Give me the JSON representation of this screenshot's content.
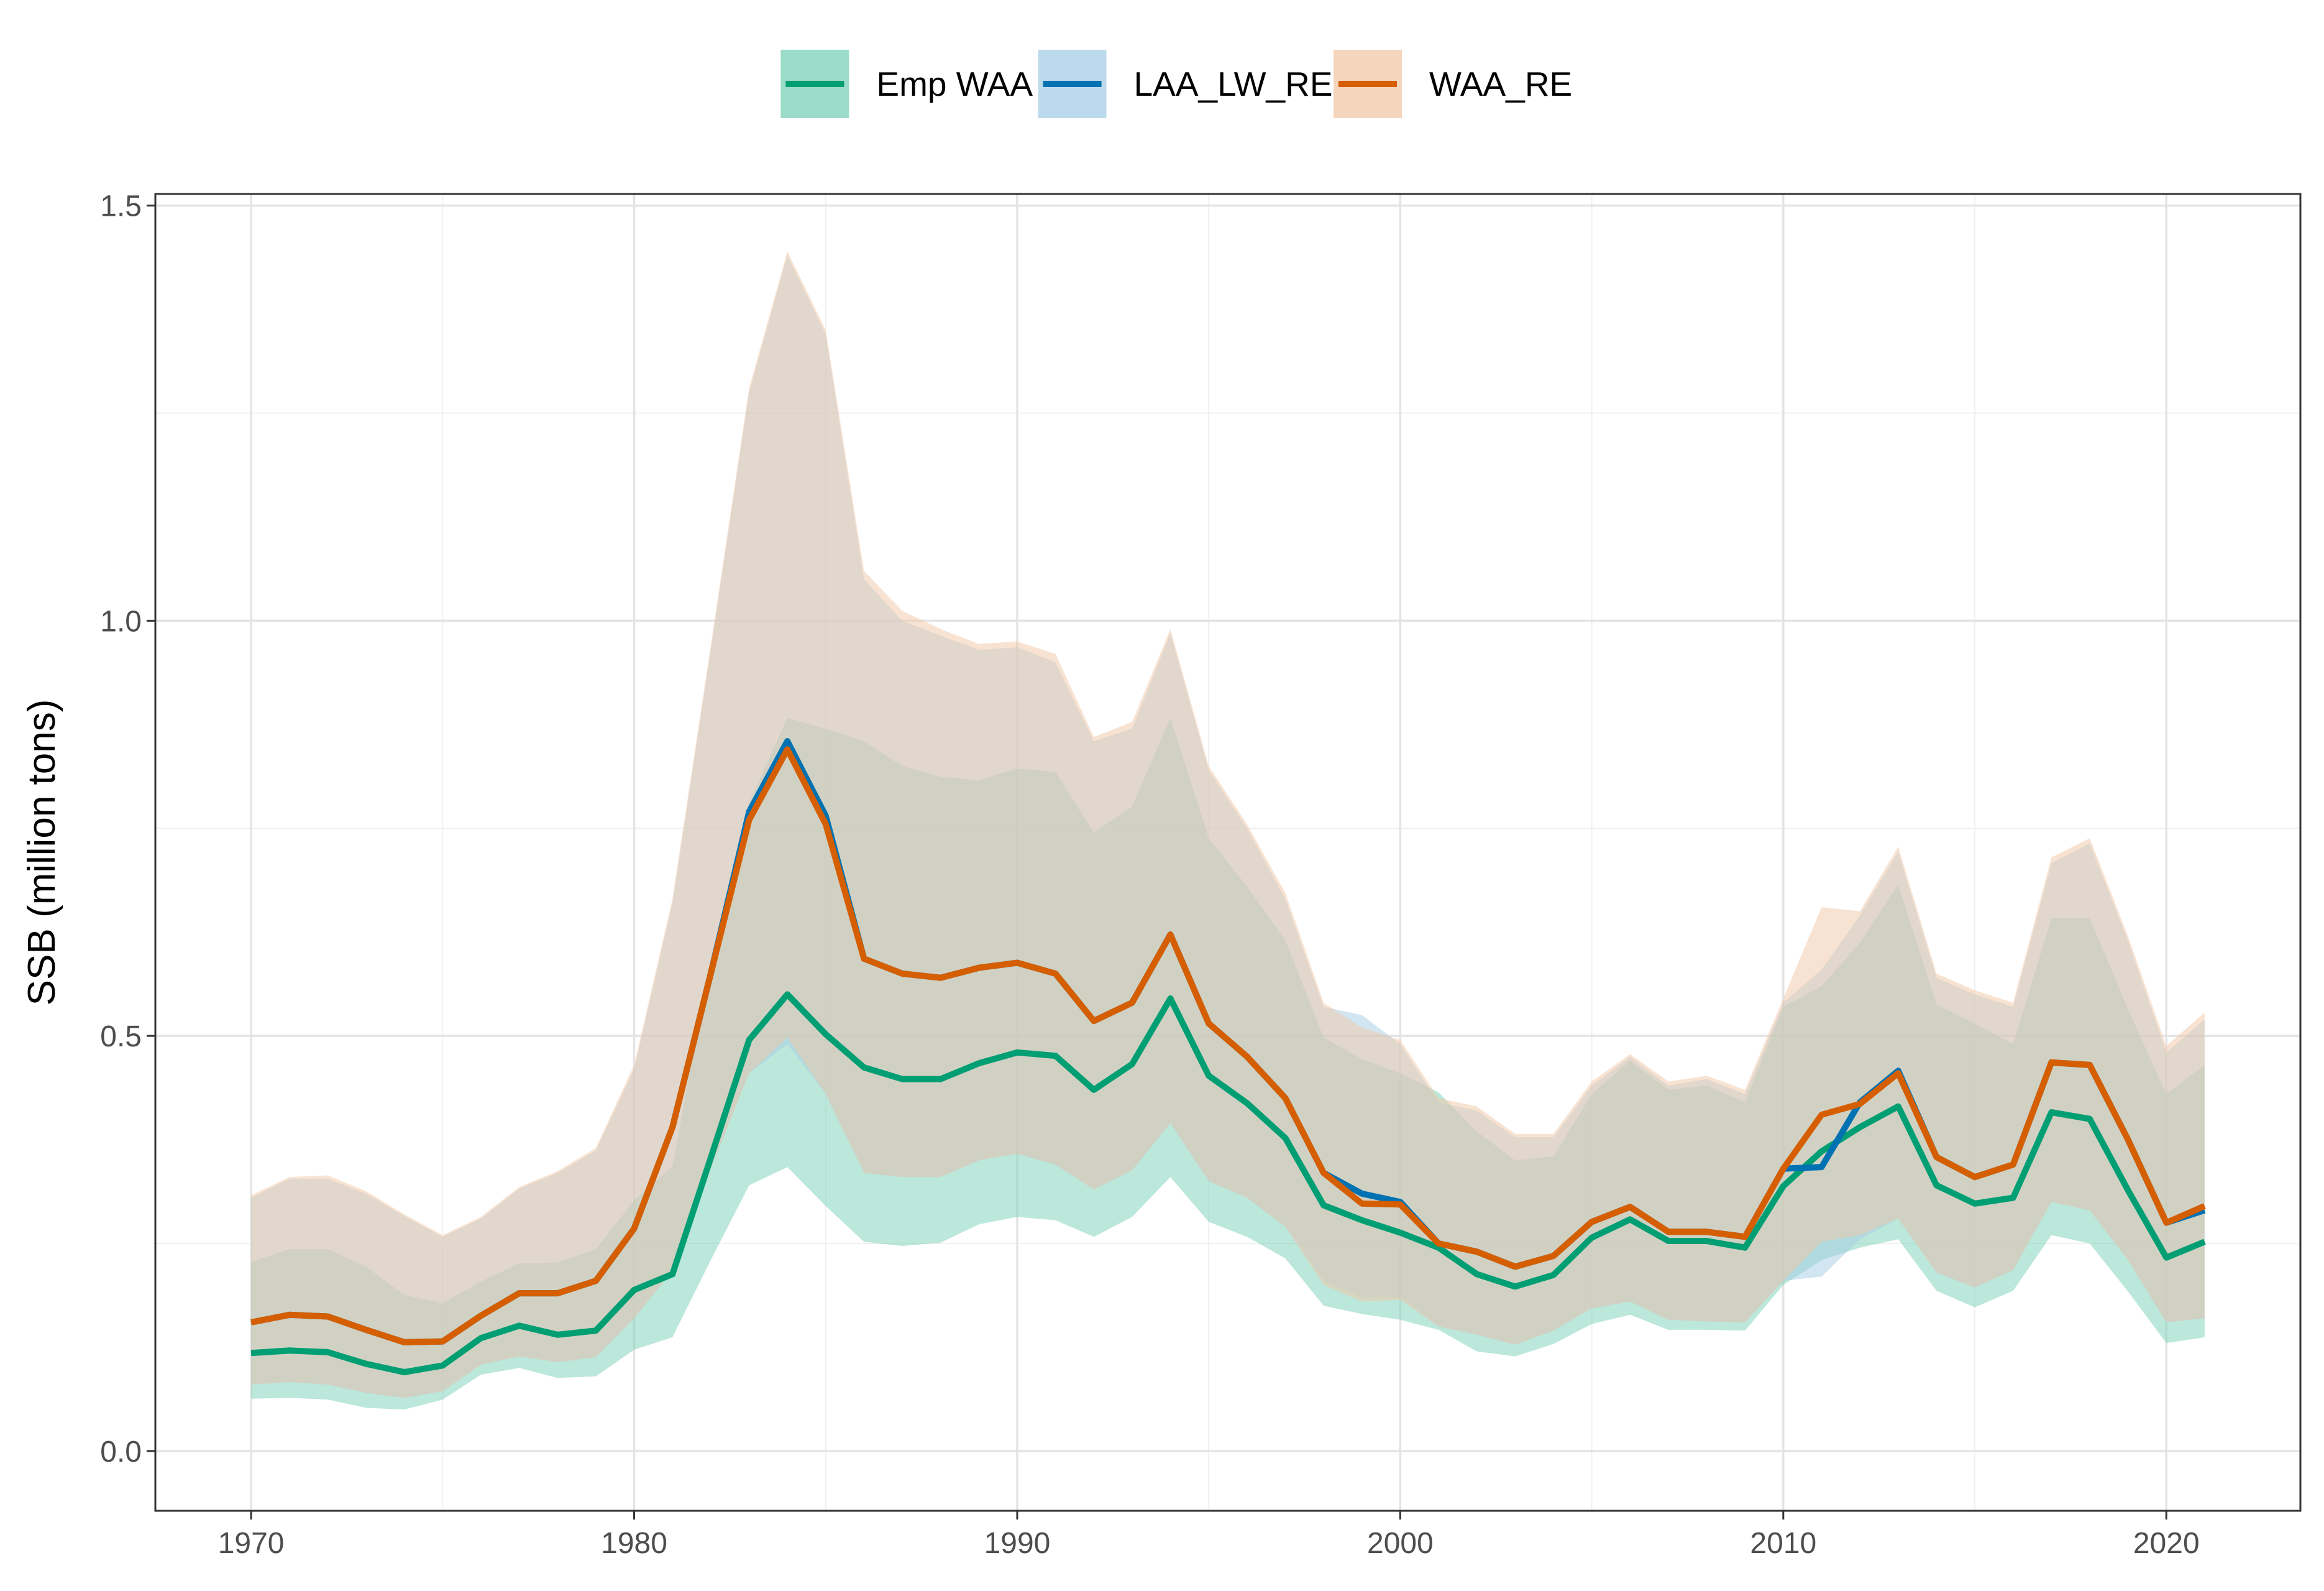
{
  "chart_data": {
    "type": "line",
    "title": "",
    "xlabel": "",
    "ylabel": "SSB (million tons)",
    "xlim": [
      1967.5,
      2023.5
    ],
    "ylim": [
      -0.072,
      1.514
    ],
    "xticks": [
      1970,
      1980,
      1990,
      2000,
      2010,
      2020
    ],
    "yticks": [
      0.0,
      0.5,
      1.0,
      1.5
    ],
    "ytick_labels": [
      "0.0",
      "0.5",
      "1.0",
      "1.5"
    ],
    "grid": true,
    "legend_position": "top",
    "years": [
      1970,
      1971,
      1972,
      1973,
      1974,
      1975,
      1976,
      1977,
      1978,
      1979,
      1980,
      1981,
      1982,
      1983,
      1984,
      1985,
      1986,
      1987,
      1988,
      1989,
      1990,
      1991,
      1992,
      1993,
      1994,
      1995,
      1996,
      1997,
      1998,
      1999,
      2000,
      2001,
      2002,
      2003,
      2004,
      2005,
      2006,
      2007,
      2008,
      2009,
      2010,
      2011,
      2012,
      2013,
      2014,
      2015,
      2016,
      2017,
      2018,
      2019,
      2020,
      2021
    ],
    "series": [
      {
        "name": "Emp WAA",
        "color": "#009E73",
        "fill": "#7ACFB7",
        "values": [
          0.118,
          0.121,
          0.119,
          0.105,
          0.095,
          0.103,
          0.136,
          0.151,
          0.14,
          0.145,
          0.194,
          0.213,
          0.353,
          0.495,
          0.55,
          0.502,
          0.462,
          0.448,
          0.448,
          0.467,
          0.48,
          0.476,
          0.435,
          0.466,
          0.545,
          0.452,
          0.419,
          0.377,
          0.296,
          0.278,
          0.263,
          0.245,
          0.213,
          0.198,
          0.212,
          0.257,
          0.279,
          0.253,
          0.253,
          0.245,
          0.319,
          0.361,
          0.39,
          0.415,
          0.32,
          0.298,
          0.305,
          0.408,
          0.4,
          0.314,
          0.233,
          0.252
        ],
        "lower": [
          0.063,
          0.064,
          0.062,
          0.052,
          0.05,
          0.062,
          0.092,
          0.1,
          0.088,
          0.09,
          0.122,
          0.137,
          0.23,
          0.32,
          0.342,
          0.295,
          0.252,
          0.247,
          0.251,
          0.273,
          0.282,
          0.278,
          0.258,
          0.282,
          0.33,
          0.276,
          0.258,
          0.232,
          0.175,
          0.165,
          0.158,
          0.146,
          0.12,
          0.114,
          0.129,
          0.153,
          0.164,
          0.146,
          0.146,
          0.145,
          0.2,
          0.23,
          0.245,
          0.255,
          0.193,
          0.173,
          0.193,
          0.26,
          0.25,
          0.192,
          0.13,
          0.137
        ],
        "upper": [
          0.228,
          0.243,
          0.243,
          0.222,
          0.188,
          0.178,
          0.204,
          0.226,
          0.227,
          0.243,
          0.302,
          0.343,
          0.591,
          0.781,
          0.883,
          0.87,
          0.855,
          0.825,
          0.812,
          0.808,
          0.822,
          0.818,
          0.745,
          0.776,
          0.883,
          0.738,
          0.68,
          0.615,
          0.498,
          0.472,
          0.455,
          0.432,
          0.385,
          0.35,
          0.355,
          0.43,
          0.47,
          0.435,
          0.44,
          0.42,
          0.535,
          0.56,
          0.612,
          0.682,
          0.538,
          0.515,
          0.49,
          0.642,
          0.642,
          0.532,
          0.43,
          0.465
        ]
      },
      {
        "name": "LAA_LW_RE",
        "color": "#0072B2",
        "fill": "#A6CEE6",
        "values": [
          0.155,
          0.164,
          0.162,
          0.146,
          0.131,
          0.132,
          0.163,
          0.19,
          0.19,
          0.205,
          0.268,
          0.39,
          0.575,
          0.77,
          0.855,
          0.765,
          0.593,
          0.575,
          0.57,
          0.582,
          0.588,
          0.575,
          0.518,
          0.54,
          0.622,
          0.515,
          0.475,
          0.425,
          0.335,
          0.31,
          0.3,
          0.25,
          0.24,
          0.222,
          0.235,
          0.276,
          0.294,
          0.264,
          0.264,
          0.258,
          0.34,
          0.342,
          0.42,
          0.458,
          0.354,
          0.33,
          0.345,
          0.468,
          0.465,
          0.375,
          0.275,
          0.29
        ],
        "lower": [
          0.08,
          0.083,
          0.08,
          0.07,
          0.064,
          0.072,
          0.104,
          0.114,
          0.107,
          0.113,
          0.16,
          0.217,
          0.34,
          0.455,
          0.49,
          0.43,
          0.335,
          0.33,
          0.33,
          0.35,
          0.358,
          0.345,
          0.315,
          0.338,
          0.395,
          0.325,
          0.305,
          0.27,
          0.205,
          0.185,
          0.185,
          0.15,
          0.14,
          0.128,
          0.145,
          0.172,
          0.18,
          0.158,
          0.156,
          0.155,
          0.205,
          0.21,
          0.255,
          0.28,
          0.215,
          0.197,
          0.218,
          0.3,
          0.29,
          0.23,
          0.155,
          0.16
        ],
        "upper": [
          0.305,
          0.328,
          0.328,
          0.31,
          0.283,
          0.258,
          0.28,
          0.316,
          0.335,
          0.362,
          0.46,
          0.66,
          0.965,
          1.275,
          1.44,
          1.345,
          1.05,
          1.0,
          0.982,
          0.965,
          0.968,
          0.95,
          0.855,
          0.87,
          0.985,
          0.82,
          0.75,
          0.665,
          0.535,
          0.525,
          0.49,
          0.42,
          0.41,
          0.378,
          0.378,
          0.44,
          0.475,
          0.44,
          0.448,
          0.43,
          0.54,
          0.58,
          0.645,
          0.722,
          0.57,
          0.55,
          0.535,
          0.708,
          0.732,
          0.615,
          0.48,
          0.52
        ]
      },
      {
        "name": "WAA_RE",
        "color": "#D55E00",
        "fill": "#F2C8A6",
        "values": [
          0.155,
          0.164,
          0.162,
          0.146,
          0.131,
          0.132,
          0.163,
          0.19,
          0.19,
          0.205,
          0.268,
          0.39,
          0.575,
          0.76,
          0.845,
          0.755,
          0.593,
          0.575,
          0.57,
          0.582,
          0.588,
          0.575,
          0.518,
          0.54,
          0.622,
          0.515,
          0.475,
          0.425,
          0.335,
          0.298,
          0.297,
          0.25,
          0.24,
          0.222,
          0.235,
          0.276,
          0.294,
          0.264,
          0.264,
          0.258,
          0.34,
          0.405,
          0.418,
          0.455,
          0.354,
          0.33,
          0.345,
          0.468,
          0.465,
          0.375,
          0.275,
          0.295
        ],
        "lower": [
          0.08,
          0.083,
          0.08,
          0.07,
          0.064,
          0.072,
          0.104,
          0.114,
          0.107,
          0.113,
          0.16,
          0.217,
          0.34,
          0.455,
          0.498,
          0.43,
          0.335,
          0.33,
          0.33,
          0.35,
          0.358,
          0.345,
          0.315,
          0.338,
          0.395,
          0.325,
          0.305,
          0.27,
          0.2,
          0.18,
          0.182,
          0.15,
          0.14,
          0.128,
          0.145,
          0.172,
          0.18,
          0.158,
          0.156,
          0.155,
          0.205,
          0.252,
          0.26,
          0.28,
          0.215,
          0.197,
          0.218,
          0.3,
          0.29,
          0.23,
          0.155,
          0.16
        ],
        "upper": [
          0.308,
          0.33,
          0.332,
          0.313,
          0.285,
          0.26,
          0.282,
          0.318,
          0.337,
          0.365,
          0.465,
          0.665,
          0.97,
          1.28,
          1.445,
          1.35,
          1.06,
          1.012,
          0.99,
          0.972,
          0.975,
          0.96,
          0.86,
          0.878,
          0.99,
          0.825,
          0.755,
          0.672,
          0.54,
          0.51,
          0.495,
          0.425,
          0.415,
          0.382,
          0.382,
          0.445,
          0.478,
          0.445,
          0.452,
          0.435,
          0.545,
          0.655,
          0.65,
          0.728,
          0.575,
          0.555,
          0.54,
          0.715,
          0.738,
          0.62,
          0.488,
          0.528
        ]
      }
    ]
  }
}
